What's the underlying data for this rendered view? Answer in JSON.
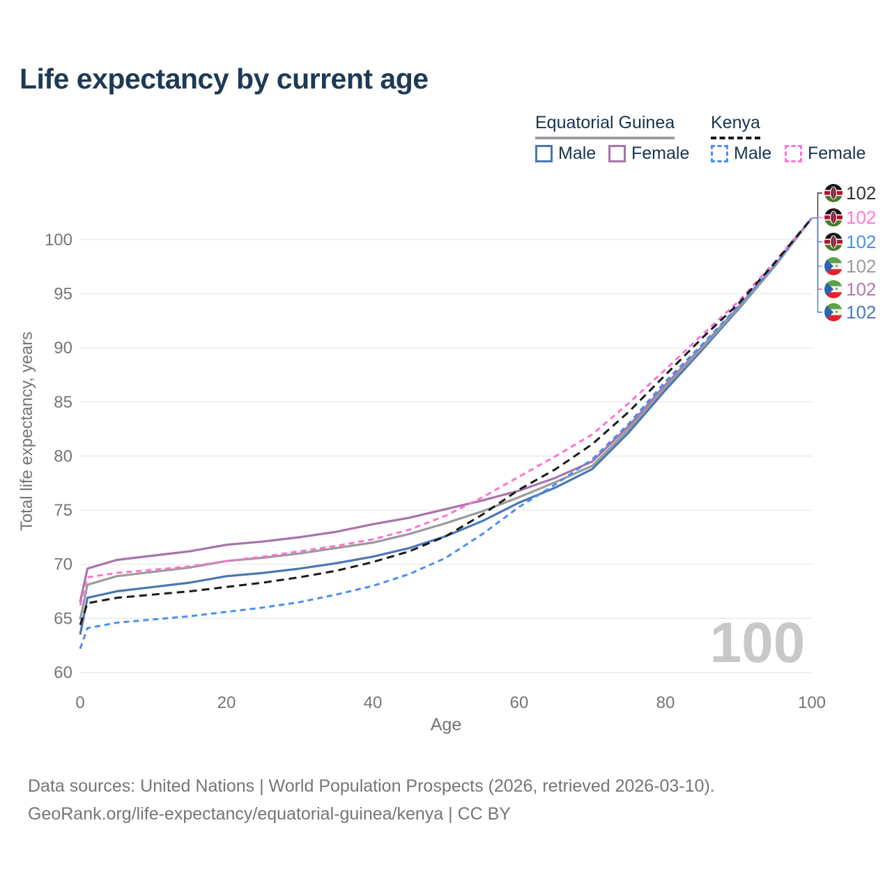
{
  "header": {
    "title": "Life expectancy by current age"
  },
  "legend": {
    "groups": [
      {
        "id": "equatorial-guinea",
        "label": "Equatorial Guinea",
        "line_style": "solid",
        "line_color": "#9e9e9e",
        "items": [
          {
            "id": "eq-male",
            "label": "Male",
            "color": "#4a77b4",
            "dash": "solid"
          },
          {
            "id": "eq-female",
            "label": "Female",
            "color": "#a873aa",
            "dash": "solid"
          }
        ]
      },
      {
        "id": "kenya",
        "label": "Kenya",
        "line_style": "dashed",
        "line_color": "#1a1a1a",
        "items": [
          {
            "id": "ke-male",
            "label": "Male",
            "color": "#4a8ef5",
            "dash": "dashed"
          },
          {
            "id": "ke-female",
            "label": "Female",
            "color": "#ff72d6",
            "dash": "dashed"
          }
        ]
      }
    ]
  },
  "chart_data": {
    "type": "line",
    "title": "Life expectancy by current age",
    "xlabel": "Age",
    "ylabel": "Total life expectancy, years",
    "xlim": [
      0,
      100
    ],
    "ylim": [
      59,
      103
    ],
    "x_ticks": [
      0,
      20,
      40,
      60,
      80,
      100
    ],
    "y_ticks": [
      60,
      65,
      70,
      75,
      80,
      85,
      90,
      95,
      100
    ],
    "grid": "horizontal-only",
    "legend_position": "top-right",
    "hover_age_indicator": "100",
    "x": [
      0,
      1,
      5,
      10,
      15,
      20,
      25,
      30,
      35,
      40,
      45,
      50,
      55,
      60,
      65,
      70,
      75,
      80,
      85,
      90,
      95,
      100
    ],
    "series": [
      {
        "id": "ke-both",
        "name": "Kenya — Both sexes",
        "country": "Kenya",
        "sex": "Both sexes",
        "flag": "kenya",
        "color": "#1a1a1a",
        "dash": "dashed",
        "dash_pattern": "11 7",
        "end_value_label": "102",
        "end_label_color": "#333333",
        "values": [
          64.4,
          66.4,
          66.9,
          67.2,
          67.5,
          67.9,
          68.3,
          68.8,
          69.4,
          70.2,
          71.2,
          72.6,
          74.6,
          76.9,
          78.8,
          81.1,
          84.1,
          87.5,
          90.9,
          94.1,
          97.9,
          102
        ]
      },
      {
        "id": "ke-female",
        "name": "Kenya — Female",
        "country": "Kenya",
        "sex": "Female",
        "flag": "kenya",
        "color": "#ff72d6",
        "dash": "dashed",
        "dash_pattern": "8 6",
        "end_value_label": "102",
        "end_label_color": "#ff7ad2",
        "values": [
          66.2,
          68.8,
          69.2,
          69.5,
          69.8,
          70.3,
          70.7,
          71.2,
          71.7,
          72.3,
          73.2,
          74.5,
          76.2,
          78.1,
          80.0,
          82.0,
          84.9,
          88.0,
          91.2,
          94.3,
          98.0,
          102
        ]
      },
      {
        "id": "ke-male",
        "name": "Kenya — Male",
        "country": "Kenya",
        "sex": "Male",
        "flag": "kenya",
        "color": "#4a8ef5",
        "dash": "dashed",
        "dash_pattern": "8 6",
        "end_value_label": "102",
        "end_label_color": "#4a8cf7",
        "values": [
          62.2,
          64.1,
          64.6,
          64.9,
          65.2,
          65.6,
          66.0,
          66.5,
          67.2,
          68.0,
          69.1,
          70.6,
          72.8,
          75.3,
          77.4,
          79.7,
          83.0,
          86.9,
          90.3,
          93.9,
          97.7,
          102
        ]
      },
      {
        "id": "eq-both",
        "name": "Equatorial Guinea — Both sexes",
        "country": "Equatorial Guinea",
        "sex": "Both sexes",
        "flag": "equatorial-guinea",
        "color": "#9a9a9a",
        "dash": "solid",
        "dash_pattern": "",
        "end_value_label": "102",
        "end_label_color": "#9a9a9a",
        "values": [
          64.9,
          68.1,
          68.9,
          69.3,
          69.7,
          70.3,
          70.6,
          71.0,
          71.5,
          72.0,
          72.8,
          73.8,
          74.9,
          76.2,
          77.6,
          79.1,
          82.5,
          86.4,
          90.0,
          93.7,
          97.6,
          102
        ]
      },
      {
        "id": "eq-female",
        "name": "Equatorial Guinea — Female",
        "country": "Equatorial Guinea",
        "sex": "Female",
        "flag": "equatorial-guinea",
        "color": "#a873aa",
        "dash": "solid",
        "dash_pattern": "",
        "end_value_label": "102",
        "end_label_color": "#b279b2",
        "values": [
          66.5,
          69.6,
          70.4,
          70.8,
          71.2,
          71.8,
          72.1,
          72.5,
          73.0,
          73.7,
          74.3,
          75.1,
          75.9,
          76.8,
          78.0,
          79.5,
          82.8,
          86.6,
          90.1,
          93.8,
          97.7,
          102
        ]
      },
      {
        "id": "eq-male",
        "name": "Equatorial Guinea — Male",
        "country": "Equatorial Guinea",
        "sex": "Male",
        "flag": "equatorial-guinea",
        "color": "#4a77b4",
        "dash": "solid",
        "dash_pattern": "",
        "end_value_label": "102",
        "end_label_color": "#4a79c4",
        "values": [
          63.5,
          66.9,
          67.5,
          67.9,
          68.3,
          68.9,
          69.2,
          69.6,
          70.1,
          70.7,
          71.5,
          72.6,
          74.0,
          75.7,
          77.1,
          78.8,
          82.2,
          86.1,
          89.8,
          93.6,
          97.6,
          102
        ]
      }
    ]
  },
  "footer": {
    "line1": "Data sources: United Nations | World Population Prospects (2026, retrieved 2026-03-10).",
    "line2": "GeoRank.org/life-expectancy/equatorial-guinea/kenya | CC BY"
  },
  "colors": {
    "title_text": "#1d3a57",
    "legend_text": "#17334f",
    "axis_text": "#757575",
    "grid": "#e7e7e7",
    "watermark": "#c8c8c8",
    "background": "#ffffff"
  }
}
